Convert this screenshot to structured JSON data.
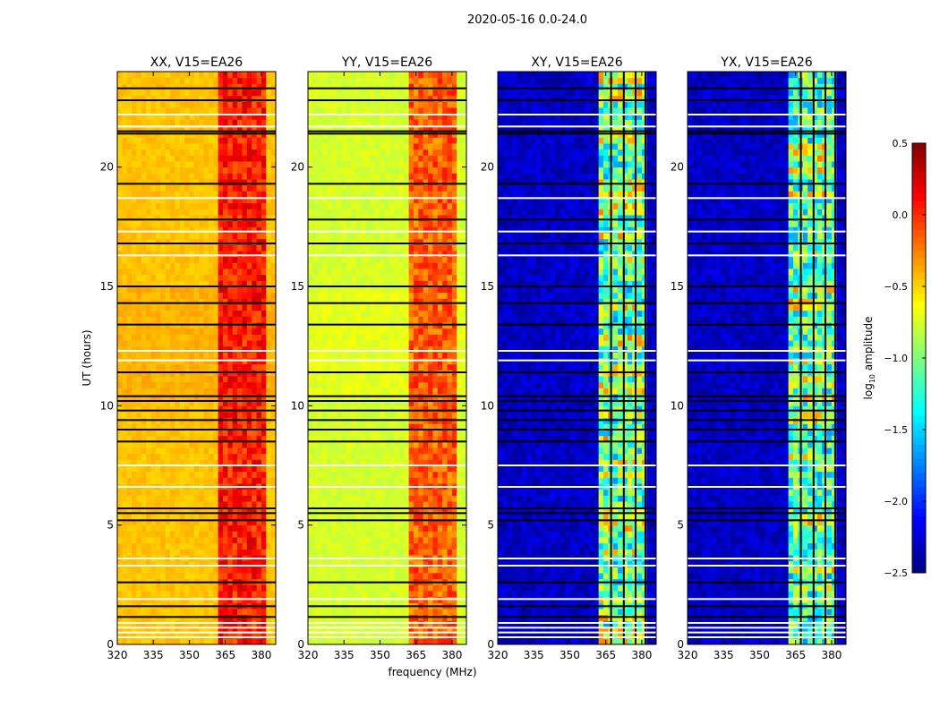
{
  "chart_data": {
    "type": "heatmap",
    "suptitle": "2020-05-16 0.0-24.0",
    "xlabel": "frequency (MHz)",
    "ylabel": "UT (hours)",
    "xlim": [
      320,
      386
    ],
    "ylim": [
      0,
      24
    ],
    "xticks": [
      320,
      335,
      350,
      365,
      380
    ],
    "yticks": [
      0,
      5,
      10,
      15,
      20
    ],
    "colorbar": {
      "label": "log10 amplitude",
      "range": [
        -2.5,
        0.5
      ],
      "ticks": [
        "0.5",
        "0.0",
        "−0.5",
        "−1.0",
        "−1.5",
        "−2.0",
        "−2.5"
      ],
      "colormap": "jet"
    },
    "band_MHz": [
      362,
      382
    ],
    "flagged_channels_MHz": [
      367.2,
      372.5,
      377.4,
      381.5
    ],
    "panels": [
      {
        "title": "XX, V15=EA26",
        "low_band_level": -0.45,
        "high_band_level": 0.05
      },
      {
        "title": "YY, V15=EA26",
        "low_band_level": -0.75,
        "high_band_level": -0.15
      },
      {
        "title": "XY, V15=EA26",
        "low_band_level": -2.3,
        "high_band_level": -1.2
      },
      {
        "title": "YX, V15=EA26",
        "low_band_level": -2.3,
        "high_band_level": -1.2
      }
    ],
    "flagged_times_white_h": [
      0.3,
      0.5,
      0.7,
      0.9,
      1.9,
      3.3,
      3.6,
      6.6,
      7.5,
      11.9,
      12.3,
      16.3,
      17.3,
      18.7,
      21.7,
      22.2
    ],
    "flagged_times_black_h": [
      1.15,
      1.6,
      2.6,
      5.2,
      5.5,
      5.7,
      8.5,
      9.0,
      9.4,
      9.8,
      10.2,
      10.4,
      11.4,
      13.4,
      14.3,
      15.0,
      16.8,
      17.8,
      19.3,
      21.4,
      21.5,
      22.8,
      23.3
    ]
  }
}
